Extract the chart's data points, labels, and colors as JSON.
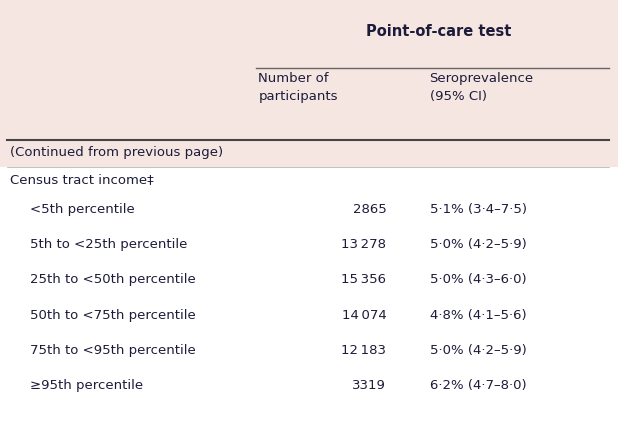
{
  "bg_color": "#f5e6e2",
  "white_color": "#ffffff",
  "text_color": "#1c1c3a",
  "header_bold": "Point-of-care test",
  "col2_header_line1": "Number of",
  "col2_header_line2": "participants",
  "col3_header_line1": "Seroprevalence",
  "col3_header_line2": "(95% CI)",
  "continued_text": "(Continued from previous page)",
  "section_label": "Census tract income‡",
  "rows": [
    {
      "label": "<5th percentile",
      "n": "2865",
      "sero": "5·1% (3·4–7·5)"
    },
    {
      "label": "5th to <25th percentile",
      "n": "13 278",
      "sero": "5·0% (4·2–5·9)"
    },
    {
      "label": "25th to <50th percentile",
      "n": "15 356",
      "sero": "5·0% (4·3–6·0)"
    },
    {
      "label": "50th to <75th percentile",
      "n": "14 074",
      "sero": "4·8% (4·1–5·6)"
    },
    {
      "label": "75th to <95th percentile",
      "n": "12 183",
      "sero": "5·0% (4·2–5·9)"
    },
    {
      "label": "≥95th percentile",
      "n": "3319",
      "sero": "6·2% (4·7–8·0)"
    }
  ],
  "fig_width": 6.18,
  "fig_height": 4.3,
  "dpi": 100
}
